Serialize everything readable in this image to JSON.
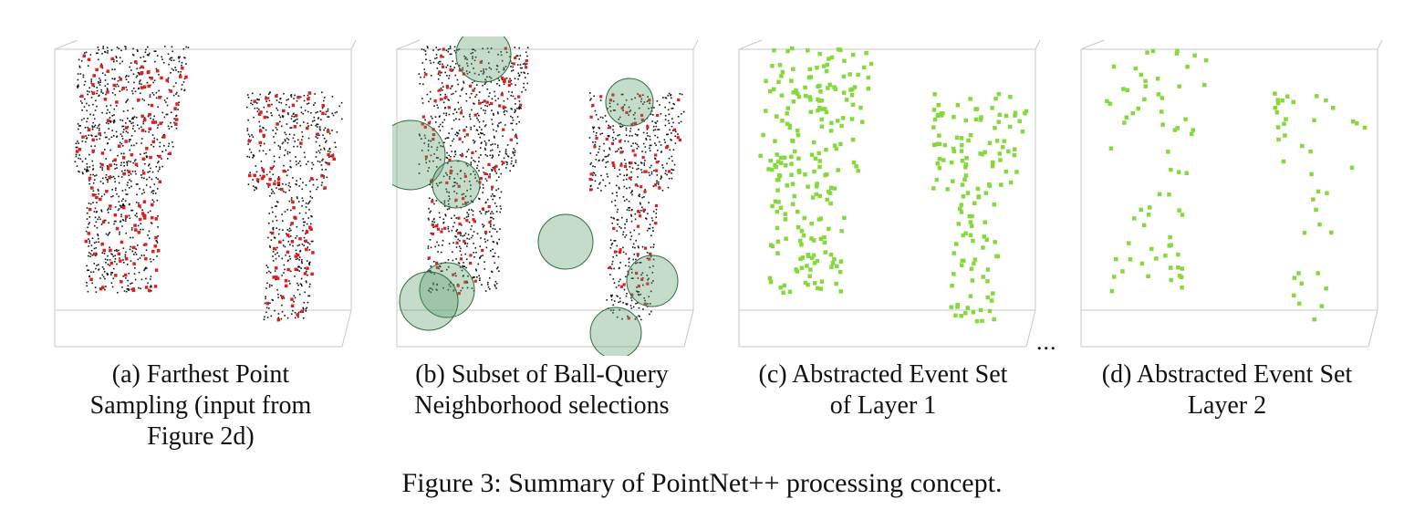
{
  "panels": [
    {
      "id": "a",
      "caption_lines": [
        "(a) Farthest Point",
        "Sampling (input from",
        "Figure 2d)"
      ]
    },
    {
      "id": "b",
      "caption_lines": [
        "(b) Subset of Ball-Query",
        "Neighborhood selections"
      ]
    },
    {
      "id": "c",
      "caption_lines": [
        "(c) Abstracted Event Set",
        "of Layer 1"
      ]
    },
    {
      "id": "d",
      "caption_lines": [
        "(d) Abstracted Event Set",
        "Layer 2"
      ]
    }
  ],
  "ellipsis": "...",
  "figure_caption": "Figure 3: Summary of PointNet++ processing concept.",
  "colors": {
    "black_points": "#111111",
    "red_points": "#dd1f1f",
    "green_points": "#86d93c",
    "ball_fill": "#5a9a6a",
    "box_lines": "#c8c8c8"
  }
}
